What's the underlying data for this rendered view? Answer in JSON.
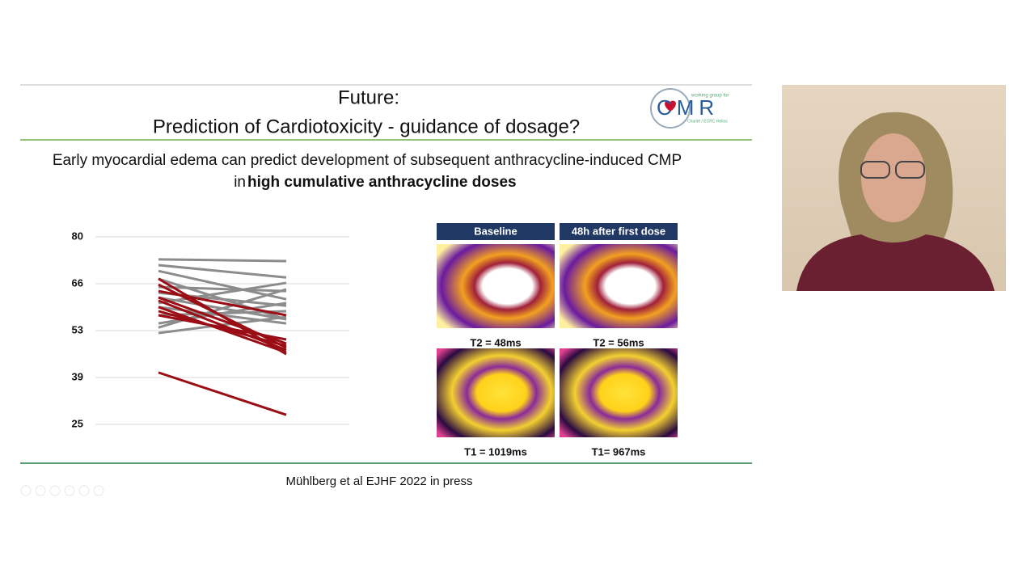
{
  "slide": {
    "title_line1": "Future:",
    "title_line2": "Prediction of Cardiotoxicity - guidance of dosage?",
    "logo": {
      "small_top": "working group for",
      "text": "CMR",
      "small_bottom": "Charité / ECRC Helios"
    },
    "subtitle_line1": "Early myocardial edema can predict development of subsequent anthracycline-induced CMP",
    "subtitle_line2_prefix": "in",
    "subtitle_line2_bold": "high cumulative anthracycline doses",
    "images": {
      "header_left": "Baseline",
      "header_right": "48h after first dose",
      "t2_left": "T2 = 48ms",
      "t2_right": "T2 = 56ms",
      "t1_left": "T1 = 1019ms",
      "t1_right": "T1= 967ms"
    },
    "citation": "Mühlberg et al  EJHF  2022 in press"
  },
  "chart_data": {
    "type": "slope",
    "categories": [
      null,
      null
    ],
    "ylim": [
      25,
      80
    ],
    "yticks": [
      25,
      {
        "value": 38.75,
        "label": "39"
      },
      {
        "value": 52.5,
        "label": "53"
      },
      {
        "value": 66.25,
        "label": "66"
      },
      80
    ],
    "grid": true,
    "series": [
      {
        "color": "#8c8c8c",
        "values": [
          73.4,
          72.9
        ]
      },
      {
        "color": "#8c8c8c",
        "values": [
          71.7,
          68.1
        ]
      },
      {
        "color": "#8c8c8c",
        "values": [
          70.0,
          61.7
        ]
      },
      {
        "color": "#8c8c8c",
        "values": [
          67.7,
          55.8
        ]
      },
      {
        "color": "#8c8c8c",
        "values": [
          65.3,
          64.1
        ]
      },
      {
        "color": "#8c8c8c",
        "values": [
          63.6,
          59.8
        ]
      },
      {
        "color": "#8c8c8c",
        "values": [
          62.2,
          55.8
        ]
      },
      {
        "color": "#8c8c8c",
        "values": [
          60.6,
          66.5
        ]
      },
      {
        "color": "#8c8c8c",
        "values": [
          59.4,
          54.6
        ]
      },
      {
        "color": "#8c8c8c",
        "values": [
          57.0,
          58.2
        ]
      },
      {
        "color": "#8c8c8c",
        "values": [
          54.6,
          60.6
        ]
      },
      {
        "color": "#8c8c8c",
        "values": [
          53.4,
          64.6
        ]
      },
      {
        "color": "#8c8c8c",
        "values": [
          51.8,
          56.5
        ]
      },
      {
        "color": "#9b0d14",
        "values": [
          67.7,
          45.6
        ]
      },
      {
        "color": "#9b0d14",
        "values": [
          66.0,
          47.5
        ]
      },
      {
        "color": "#9b0d14",
        "values": [
          64.1,
          57.0
        ]
      },
      {
        "color": "#9b0d14",
        "values": [
          62.2,
          48.7
        ]
      },
      {
        "color": "#9b0d14",
        "values": [
          61.3,
          46.8
        ]
      },
      {
        "color": "#9b0d14",
        "values": [
          59.4,
          46.1
        ]
      },
      {
        "color": "#9b0d14",
        "values": [
          58.2,
          48.0
        ]
      },
      {
        "color": "#9b0d14",
        "values": [
          57.0,
          49.9
        ]
      },
      {
        "color": "#9b0d14",
        "values": [
          40.2,
          27.8
        ]
      }
    ]
  }
}
